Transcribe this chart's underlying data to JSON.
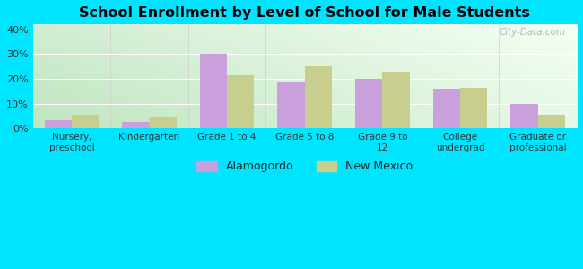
{
  "title": "School Enrollment by Level of School for Male Students",
  "categories": [
    "Nursery,\npreschool",
    "Kindergarten",
    "Grade 1 to 4",
    "Grade 5 to 8",
    "Grade 9 to\n12",
    "College\nundergrad",
    "Graduate or\nprofessional"
  ],
  "alamogordo": [
    3.5,
    2.5,
    30.0,
    19.0,
    20.0,
    16.0,
    10.0
  ],
  "new_mexico": [
    5.5,
    4.5,
    21.5,
    25.0,
    23.0,
    16.5,
    5.5
  ],
  "bar_color_alamo": "#c9a0dc",
  "bar_color_nm": "#c8cf8e",
  "background_outer": "#00e5ff",
  "ylim": [
    0,
    42
  ],
  "yticks": [
    0,
    10,
    20,
    30,
    40
  ],
  "ytick_labels": [
    "0%",
    "10%",
    "20%",
    "30%",
    "40%"
  ],
  "legend_labels": [
    "Alamogordo",
    "New Mexico"
  ],
  "watermark": "City-Data.com",
  "bar_width": 0.35,
  "bg_top_left": "#d4edda",
  "bg_top_right": "#f0f8f0",
  "bg_bottom_left": "#c8e6c9",
  "bg_bottom_right": "#e8f5e9"
}
